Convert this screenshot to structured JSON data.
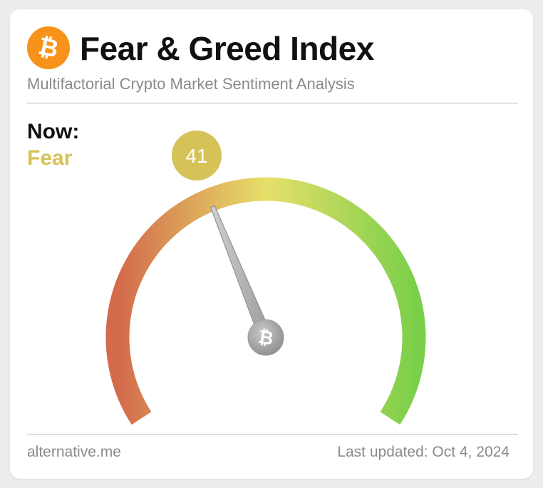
{
  "header": {
    "title": "Fear & Greed Index",
    "subtitle": "Multifactorial Crypto Market Sentiment Analysis",
    "logo_icon": "bitcoin-icon",
    "logo_color": "#f7931a"
  },
  "status": {
    "now_label": "Now:",
    "classification": "Fear",
    "classification_color": "#d6c257"
  },
  "gauge": {
    "value": 41,
    "min": 0,
    "max": 100,
    "badge_color": "#d6c257",
    "needle_icon": "bitcoin-icon",
    "color_low": "#d36a4c",
    "color_mid": "#e6e06a",
    "color_high": "#7ccf4a"
  },
  "footer": {
    "source": "alternative.me",
    "last_updated": "Last updated: Oct 4, 2024"
  }
}
